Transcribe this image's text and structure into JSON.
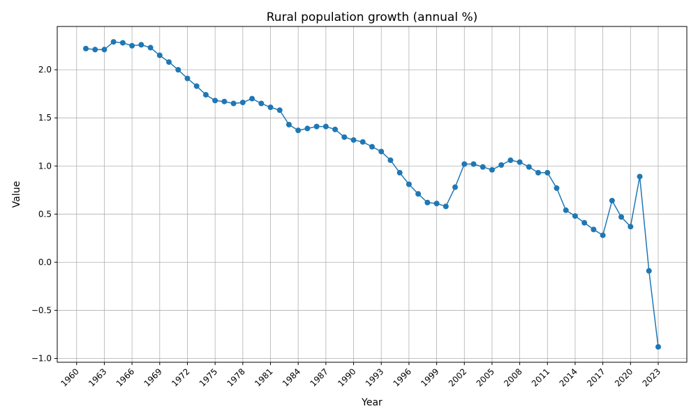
{
  "chart_data": {
    "type": "line",
    "title": "Rural population growth (annual %)",
    "x_label": "Year",
    "y_label": "Value",
    "x": [
      1961,
      1962,
      1963,
      1964,
      1965,
      1966,
      1967,
      1968,
      1969,
      1970,
      1971,
      1972,
      1973,
      1974,
      1975,
      1976,
      1977,
      1978,
      1979,
      1980,
      1981,
      1982,
      1983,
      1984,
      1985,
      1986,
      1987,
      1988,
      1989,
      1990,
      1991,
      1992,
      1993,
      1994,
      1995,
      1996,
      1997,
      1998,
      1999,
      2000,
      2001,
      2002,
      2003,
      2004,
      2005,
      2006,
      2007,
      2008,
      2009,
      2010,
      2011,
      2012,
      2013,
      2014,
      2015,
      2016,
      2017,
      2018,
      2019,
      2020,
      2021,
      2022,
      2023
    ],
    "series": [
      {
        "color": "#1f77b4",
        "values": [
          2.22,
          2.21,
          2.21,
          2.29,
          2.28,
          2.25,
          2.26,
          2.23,
          2.15,
          2.08,
          2.0,
          1.91,
          1.83,
          1.74,
          1.68,
          1.67,
          1.65,
          1.66,
          1.7,
          1.65,
          1.61,
          1.58,
          1.43,
          1.37,
          1.39,
          1.41,
          1.41,
          1.38,
          1.3,
          1.27,
          1.25,
          1.2,
          1.15,
          1.06,
          0.93,
          0.81,
          0.71,
          0.62,
          0.61,
          0.58,
          0.78,
          1.02,
          1.02,
          0.99,
          0.96,
          1.01,
          1.06,
          1.04,
          0.99,
          0.93,
          0.93,
          0.77,
          0.54,
          0.48,
          0.41,
          0.34,
          0.28,
          0.64,
          0.47,
          0.37,
          0.89,
          -0.09,
          -0.88
        ]
      }
    ],
    "xlim": [
      1957.9,
      2026.1
    ],
    "xticks": [
      1960,
      1963,
      1966,
      1969,
      1972,
      1975,
      1978,
      1981,
      1984,
      1987,
      1990,
      1993,
      1996,
      1999,
      2002,
      2005,
      2008,
      2011,
      2014,
      2017,
      2020,
      2023
    ],
    "ylim": [
      -1.04,
      2.45
    ],
    "yticks": [
      {
        "value": -1,
        "label": "−1.0"
      },
      {
        "value": -0.5,
        "label": "−0.5"
      },
      {
        "value": 0,
        "label": "0.0"
      },
      0.5,
      {
        "value": 1,
        "label": "1.0"
      },
      1.5,
      {
        "value": 2,
        "label": "2.0"
      }
    ],
    "grid": true
  }
}
